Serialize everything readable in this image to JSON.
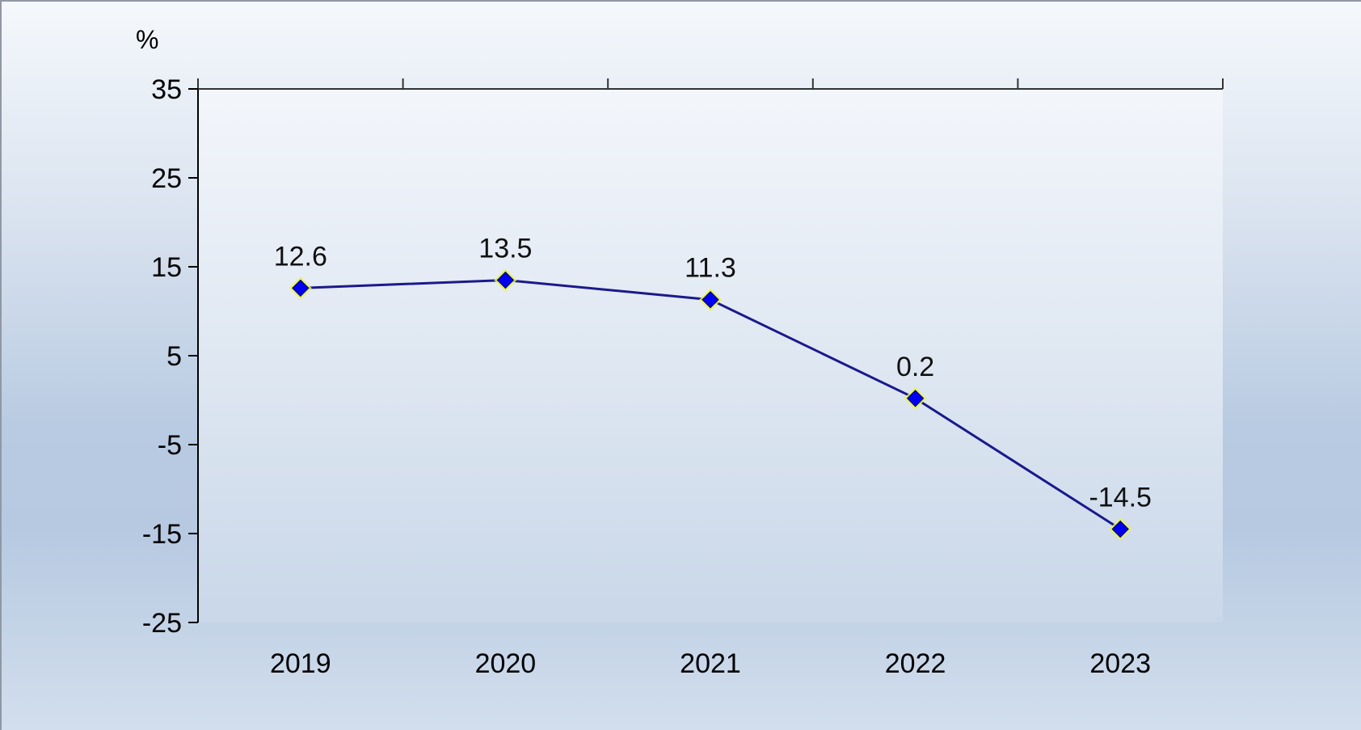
{
  "chart_data": {
    "type": "line",
    "unit": "%",
    "categories": [
      "2019",
      "2020",
      "2021",
      "2022",
      "2023"
    ],
    "series": [
      {
        "values": [
          12.6,
          13.5,
          11.3,
          0.2,
          -14.5
        ],
        "color": "#1a1a8c",
        "marker": "diamond",
        "marker_color": "#0000ee",
        "marker_halo": "#e8f550"
      }
    ],
    "data_labels": [
      "12.6",
      "13.5",
      "11.3",
      "0.2",
      "-14.5"
    ],
    "ylim": [
      -25,
      35
    ],
    "yticks": [
      -25,
      -15,
      -5,
      5,
      15,
      25,
      35
    ],
    "ytick_labels": [
      "-25",
      "-15",
      "-5",
      "5",
      "15",
      "25",
      "35"
    ],
    "grid": false,
    "legend": "none",
    "plot_background": "#eef3f9"
  }
}
